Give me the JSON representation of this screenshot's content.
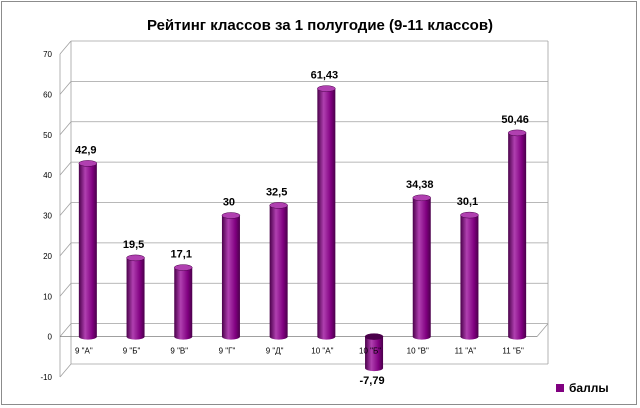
{
  "chart_data": {
    "type": "bar",
    "title": "Рейтинг классов за 1 полугодие (9-11 классов)",
    "xlabel": "",
    "ylabel": "",
    "ylim": [
      -10,
      70
    ],
    "yticks": [
      "-10",
      "0",
      "10",
      "20",
      "30",
      "40",
      "50",
      "60",
      "70"
    ],
    "categories": [
      "9 \"А\"",
      "9 \"Б\"",
      "9 \"В\"",
      "9 \"Г\"",
      "9 \"Д\"",
      "10 \"А\"",
      "10 \"Б\"",
      "10 \"В\"",
      "11 \"А\"",
      "11 \"Б\""
    ],
    "series": [
      {
        "name": "баллы",
        "values": [
          42.9,
          19.5,
          17.1,
          30,
          32.5,
          61.43,
          -7.79,
          34.38,
          30.1,
          50.46
        ],
        "labels": [
          "42,9",
          "19,5",
          "17,1",
          "30",
          "32,5",
          "61,43",
          "-7,79",
          "34,38",
          "30,1",
          "50,46"
        ]
      }
    ],
    "grid": true,
    "legend_position": "bottom-right",
    "colors": {
      "bar": "#800080",
      "bar_dark": "#4a004a",
      "bar_light": "#b040b0",
      "grid": "#a0a0a0"
    }
  }
}
